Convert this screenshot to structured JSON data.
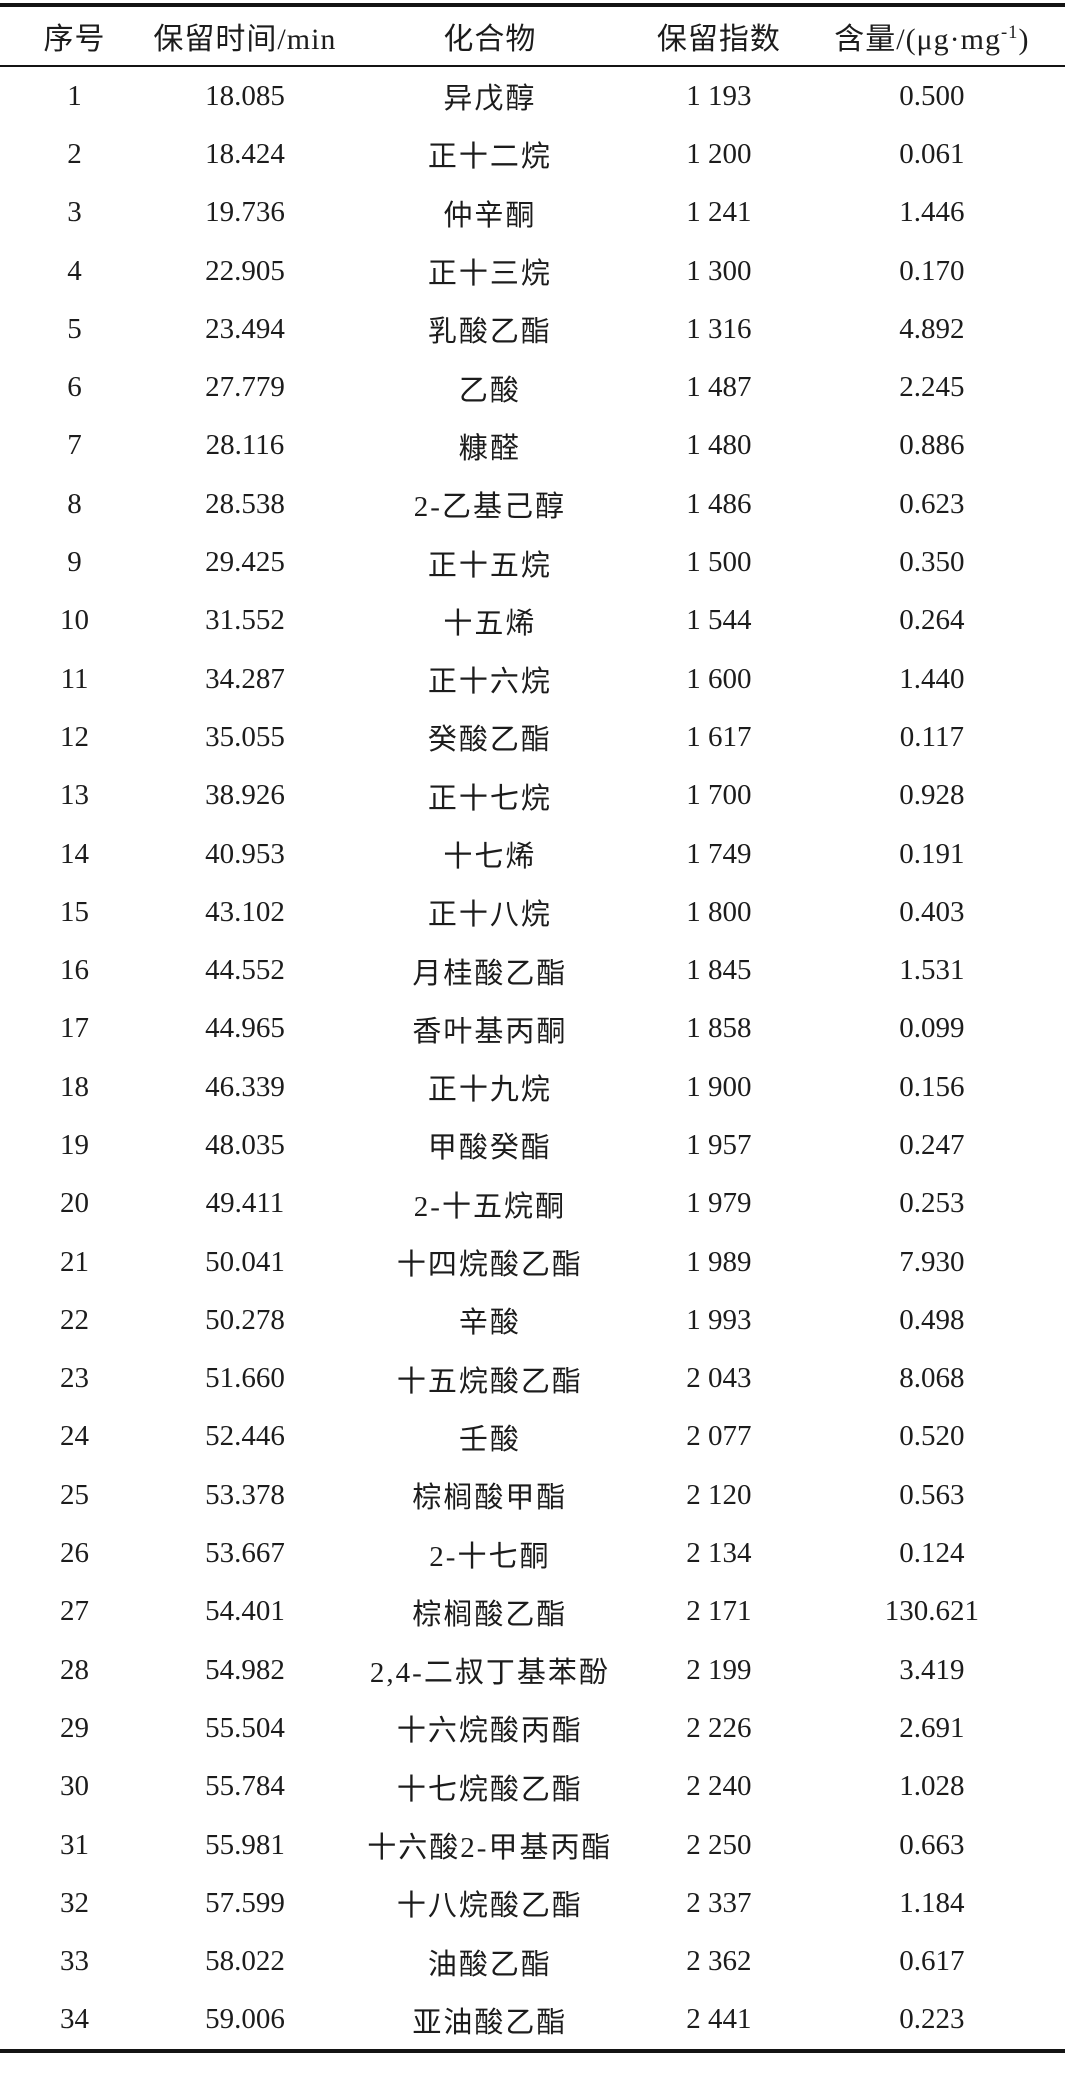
{
  "page": {
    "background_color": "#ffffff",
    "text_color": "#1c1c1c",
    "rule_color": "#141414"
  },
  "table": {
    "header": {
      "no": "序号",
      "retention_time": "保留时间/min",
      "compound": "化合物",
      "retention_index": "保留指数",
      "amount_prefix": "含量/(μg·mg",
      "amount_sup": "-1",
      "amount_suffix": ")"
    },
    "rows": [
      {
        "no": "1",
        "rt": "18.085",
        "compound": "异戊醇",
        "ri": "1 193",
        "amount": "0.500"
      },
      {
        "no": "2",
        "rt": "18.424",
        "compound": "正十二烷",
        "ri": "1 200",
        "amount": "0.061"
      },
      {
        "no": "3",
        "rt": "19.736",
        "compound": "仲辛酮",
        "ri": "1 241",
        "amount": "1.446"
      },
      {
        "no": "4",
        "rt": "22.905",
        "compound": "正十三烷",
        "ri": "1 300",
        "amount": "0.170"
      },
      {
        "no": "5",
        "rt": "23.494",
        "compound": "乳酸乙酯",
        "ri": "1 316",
        "amount": "4.892"
      },
      {
        "no": "6",
        "rt": "27.779",
        "compound": "乙酸",
        "ri": "1 487",
        "amount": "2.245"
      },
      {
        "no": "7",
        "rt": "28.116",
        "compound": "糠醛",
        "ri": "1 480",
        "amount": "0.886"
      },
      {
        "no": "8",
        "rt": "28.538",
        "compound": "2-乙基己醇",
        "ri": "1 486",
        "amount": "0.623"
      },
      {
        "no": "9",
        "rt": "29.425",
        "compound": "正十五烷",
        "ri": "1 500",
        "amount": "0.350"
      },
      {
        "no": "10",
        "rt": "31.552",
        "compound": "十五烯",
        "ri": "1 544",
        "amount": "0.264"
      },
      {
        "no": "11",
        "rt": "34.287",
        "compound": "正十六烷",
        "ri": "1 600",
        "amount": "1.440"
      },
      {
        "no": "12",
        "rt": "35.055",
        "compound": "癸酸乙酯",
        "ri": "1 617",
        "amount": "0.117"
      },
      {
        "no": "13",
        "rt": "38.926",
        "compound": "正十七烷",
        "ri": "1 700",
        "amount": "0.928"
      },
      {
        "no": "14",
        "rt": "40.953",
        "compound": "十七烯",
        "ri": "1 749",
        "amount": "0.191"
      },
      {
        "no": "15",
        "rt": "43.102",
        "compound": "正十八烷",
        "ri": "1 800",
        "amount": "0.403"
      },
      {
        "no": "16",
        "rt": "44.552",
        "compound": "月桂酸乙酯",
        "ri": "1 845",
        "amount": "1.531"
      },
      {
        "no": "17",
        "rt": "44.965",
        "compound": "香叶基丙酮",
        "ri": "1 858",
        "amount": "0.099"
      },
      {
        "no": "18",
        "rt": "46.339",
        "compound": "正十九烷",
        "ri": "1 900",
        "amount": "0.156"
      },
      {
        "no": "19",
        "rt": "48.035",
        "compound": "甲酸癸酯",
        "ri": "1 957",
        "amount": "0.247"
      },
      {
        "no": "20",
        "rt": "49.411",
        "compound": "2-十五烷酮",
        "ri": "1 979",
        "amount": "0.253"
      },
      {
        "no": "21",
        "rt": "50.041",
        "compound": "十四烷酸乙酯",
        "ri": "1 989",
        "amount": "7.930"
      },
      {
        "no": "22",
        "rt": "50.278",
        "compound": "辛酸",
        "ri": "1 993",
        "amount": "0.498"
      },
      {
        "no": "23",
        "rt": "51.660",
        "compound": "十五烷酸乙酯",
        "ri": "2 043",
        "amount": "8.068"
      },
      {
        "no": "24",
        "rt": "52.446",
        "compound": "壬酸",
        "ri": "2 077",
        "amount": "0.520"
      },
      {
        "no": "25",
        "rt": "53.378",
        "compound": "棕榈酸甲酯",
        "ri": "2 120",
        "amount": "0.563"
      },
      {
        "no": "26",
        "rt": "53.667",
        "compound": "2-十七酮",
        "ri": "2 134",
        "amount": "0.124"
      },
      {
        "no": "27",
        "rt": "54.401",
        "compound": "棕榈酸乙酯",
        "ri": "2 171",
        "amount": "130.621"
      },
      {
        "no": "28",
        "rt": "54.982",
        "compound": "2,4-二叔丁基苯酚",
        "ri": "2 199",
        "amount": "3.419"
      },
      {
        "no": "29",
        "rt": "55.504",
        "compound": "十六烷酸丙酯",
        "ri": "2 226",
        "amount": "2.691"
      },
      {
        "no": "30",
        "rt": "55.784",
        "compound": "十七烷酸乙酯",
        "ri": "2 240",
        "amount": "1.028"
      },
      {
        "no": "31",
        "rt": "55.981",
        "compound": "十六酸2-甲基丙酯",
        "ri": "2 250",
        "amount": "0.663"
      },
      {
        "no": "32",
        "rt": "57.599",
        "compound": "十八烷酸乙酯",
        "ri": "2 337",
        "amount": "1.184"
      },
      {
        "no": "33",
        "rt": "58.022",
        "compound": "油酸乙酯",
        "ri": "2 362",
        "amount": "0.617"
      },
      {
        "no": "34",
        "rt": "59.006",
        "compound": "亚油酸乙酯",
        "ri": "2 441",
        "amount": "0.223"
      }
    ]
  }
}
